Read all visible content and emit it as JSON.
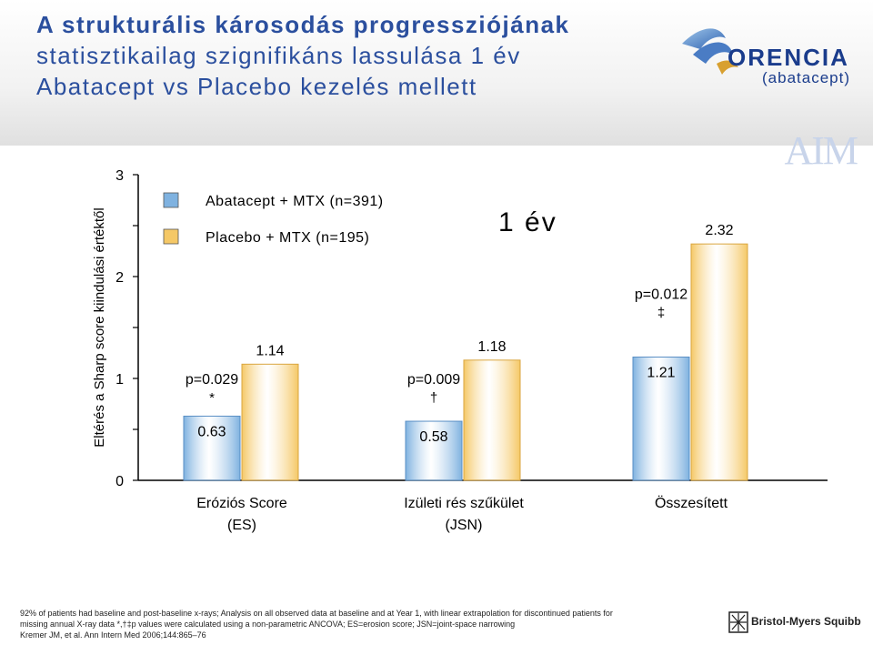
{
  "slide": {
    "title_line1": "A strukturális károsodás progressziójának",
    "title_line2": "statisztikailag szignifikáns lassulása 1 év",
    "title_line3": "Abatacept vs Placebo kezelés mellett",
    "brand_name": "ORENCIA",
    "brand_generic": "(abatacept)",
    "watermark": "AIM",
    "period_label": "1 év",
    "footnote_line1": "92% of patients had baseline and post-baseline x-rays; Analysis on all observed data at baseline and at Year 1, with linear extrapolation for discontinued patients for",
    "footnote_line2": "missing annual X-ray data *,†‡p values were calculated using a non-parametric ANCOVA; ES=erosion score; JSN=joint-space narrowing",
    "footnote_line3": "Kremer JM, et al. Ann Intern Med 2006;144:865–76",
    "company": "Bristol-Myers Squibb",
    "colors": {
      "title": "#2b4f9e",
      "abatacept_bar": "#7fb2e0",
      "placebo_bar": "#f5c866"
    }
  },
  "chart_data": {
    "type": "bar",
    "ylabel": "Eltérés a Sharp score kiindulási értéktől",
    "ylim": [
      0,
      3
    ],
    "yticks": [
      "0",
      "1",
      "2",
      "3"
    ],
    "categories": [
      [
        "Eróziós Score",
        "(ES)"
      ],
      [
        "Izületi rés szűkület",
        "(JSN)"
      ],
      [
        "Összesített"
      ]
    ],
    "series": [
      {
        "name": "Abatacept + MTX (n=391)",
        "values": [
          0.63,
          0.58,
          1.21
        ],
        "labels": [
          "0.63",
          "0.58",
          "1.21"
        ],
        "color": "#7fb2e0"
      },
      {
        "name": "Placebo + MTX (n=195)",
        "values": [
          1.14,
          1.18,
          2.32
        ],
        "labels": [
          "1.14",
          "1.18",
          "2.32"
        ],
        "color": "#f5c866"
      }
    ],
    "annotations": [
      {
        "pvalue": "p=0.029",
        "symbol": "*"
      },
      {
        "pvalue": "p=0.009",
        "symbol": "†"
      },
      {
        "pvalue": "p=0.012",
        "symbol": "‡"
      }
    ]
  }
}
